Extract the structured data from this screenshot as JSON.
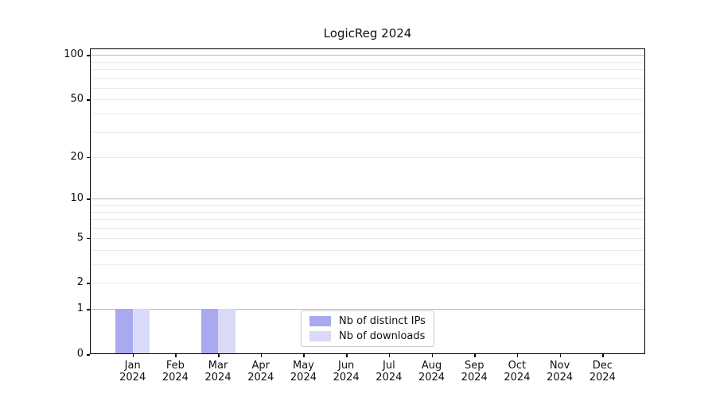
{
  "title": "LogicReg 2024",
  "chart_data": {
    "type": "bar",
    "title": "LogicReg 2024",
    "months": [
      "Jan",
      "Feb",
      "Mar",
      "Apr",
      "May",
      "Jun",
      "Jul",
      "Aug",
      "Sep",
      "Oct",
      "Nov",
      "Dec"
    ],
    "year": "2024",
    "categories": [
      "Jan 2024",
      "Feb 2024",
      "Mar 2024",
      "Apr 2024",
      "May 2024",
      "Jun 2024",
      "Jul 2024",
      "Aug 2024",
      "Sep 2024",
      "Oct 2024",
      "Nov 2024",
      "Dec 2024"
    ],
    "series": [
      {
        "name": "Nb of distinct IPs",
        "color": "#a9a9ef",
        "values": [
          1,
          0,
          1,
          0,
          0,
          0,
          0,
          0,
          0,
          0,
          0,
          0
        ]
      },
      {
        "name": "Nb of downloads",
        "color": "#d9d9f8",
        "values": [
          1,
          0,
          1,
          0,
          0,
          0,
          0,
          0,
          0,
          0,
          0,
          0
        ]
      }
    ],
    "y_scale": "log1p",
    "y_ticks": [
      0,
      1,
      2,
      5,
      10,
      20,
      50,
      100
    ],
    "y_gridlines_major": [
      1,
      10,
      100
    ],
    "y_gridlines_minor": [
      2,
      3,
      4,
      5,
      6,
      7,
      8,
      9,
      20,
      30,
      40,
      50,
      60,
      70,
      80,
      90
    ],
    "ylim": [
      0,
      111
    ],
    "legend_position": "lower center",
    "colors": {
      "grid_major": "#b8b8b8",
      "grid_minor": "#ebebeb",
      "spine": "#000000",
      "text": "#111111"
    }
  }
}
